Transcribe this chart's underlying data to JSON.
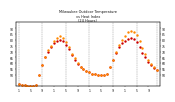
{
  "title": "Milwaukee Outdoor Temperature\nvs Heat Index\n(24 Hours)",
  "temp_color": "#cc0000",
  "heat_color": "#ff8800",
  "background": "#ffffff",
  "ylim": [
    40,
    95
  ],
  "yticks_left": [
    50,
    55,
    60,
    65,
    70,
    75,
    80,
    85,
    90
  ],
  "ytick_labels_left": [
    "50",
    "55",
    "60",
    "65",
    "70",
    "75",
    "80",
    "85",
    "90"
  ],
  "yticks_right": [
    50,
    55,
    60,
    65,
    70,
    75,
    80,
    85,
    90
  ],
  "ytick_labels_right": [
    "50",
    "55",
    "60",
    "65",
    "70",
    "75",
    "80",
    "85",
    "90"
  ],
  "temp": [
    42,
    41,
    41,
    40,
    40,
    40,
    41,
    50,
    58,
    65,
    70,
    74,
    77,
    79,
    80,
    79,
    76,
    72,
    67,
    63,
    59,
    57,
    55,
    53,
    52,
    51,
    51,
    50,
    50,
    50,
    51,
    57,
    63,
    69,
    74,
    77,
    79,
    81,
    82,
    81,
    78,
    74,
    69,
    65,
    61,
    58,
    56,
    54
  ],
  "heat_index": [
    42,
    41,
    41,
    40,
    40,
    40,
    41,
    50,
    58,
    65,
    71,
    75,
    79,
    82,
    83,
    82,
    78,
    74,
    68,
    64,
    60,
    57,
    55,
    53,
    52,
    51,
    51,
    50,
    50,
    50,
    51,
    57,
    63,
    70,
    76,
    80,
    83,
    87,
    88,
    87,
    84,
    79,
    73,
    68,
    63,
    59,
    57,
    54
  ],
  "vline_positions": [
    0,
    8,
    16,
    24,
    32,
    40,
    47
  ],
  "xtick_positions": [
    0,
    4,
    8,
    12,
    16,
    20,
    24,
    28,
    32,
    36,
    40,
    44
  ],
  "xtick_labels": [
    "1",
    "5",
    "9",
    "1",
    "5",
    "9",
    "1",
    "5",
    "9",
    "1",
    "5",
    "9"
  ],
  "xlim": [
    -1,
    48
  ],
  "dot_size": 3
}
